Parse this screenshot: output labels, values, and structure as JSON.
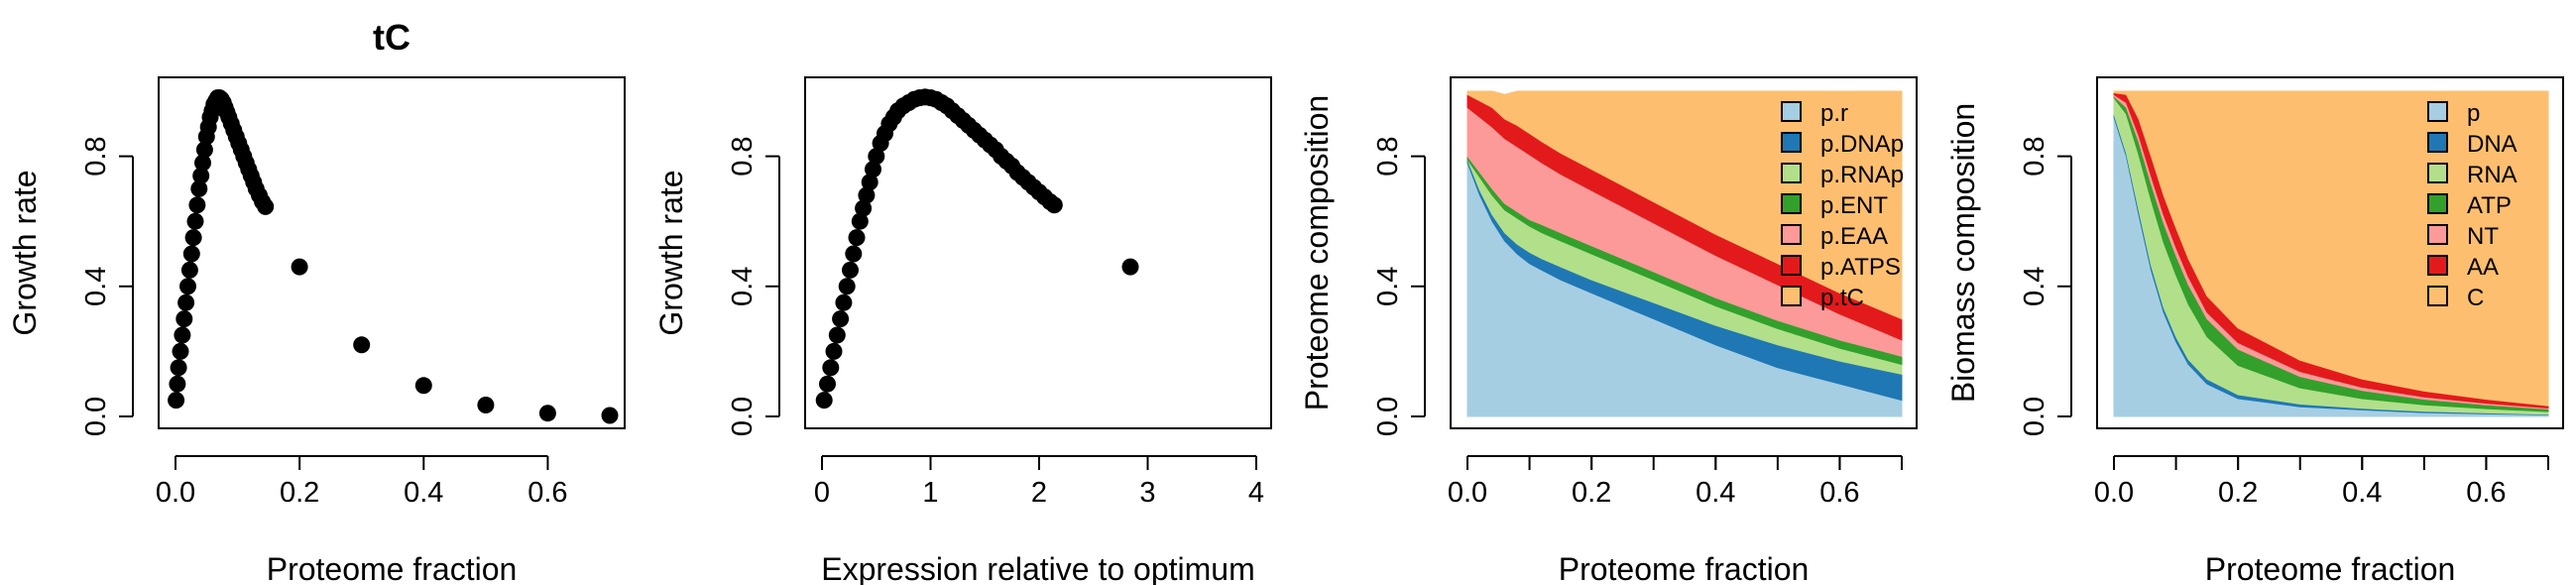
{
  "chart_data": [
    {
      "type": "scatter",
      "title": "tC",
      "xlabel": "Proteome fraction",
      "ylabel": "Growth rate",
      "xlim": [
        0,
        0.7
      ],
      "ylim": [
        0,
        1
      ],
      "xticks": [
        "0.0",
        "0.2",
        "0.4",
        "0.6"
      ],
      "xtick_values": [
        0,
        0.2,
        0.4,
        0.6
      ],
      "yticks": [
        "0.0",
        "0.4",
        "0.8"
      ],
      "ytick_values": [
        0,
        0.4,
        0.8
      ],
      "x": [
        0.001,
        0.003,
        0.005,
        0.008,
        0.011,
        0.014,
        0.017,
        0.02,
        0.023,
        0.026,
        0.029,
        0.032,
        0.035,
        0.038,
        0.041,
        0.044,
        0.047,
        0.05,
        0.053,
        0.056,
        0.059,
        0.062,
        0.065,
        0.068,
        0.071,
        0.074,
        0.077,
        0.08,
        0.083,
        0.086,
        0.09,
        0.094,
        0.098,
        0.102,
        0.106,
        0.11,
        0.114,
        0.118,
        0.122,
        0.126,
        0.13,
        0.135,
        0.14,
        0.145,
        0.2,
        0.3,
        0.4,
        0.5,
        0.6,
        0.7
      ],
      "y": [
        0.05,
        0.1,
        0.15,
        0.2,
        0.25,
        0.3,
        0.35,
        0.4,
        0.45,
        0.5,
        0.55,
        0.6,
        0.65,
        0.7,
        0.74,
        0.78,
        0.82,
        0.86,
        0.89,
        0.92,
        0.94,
        0.96,
        0.97,
        0.98,
        0.98,
        0.975,
        0.965,
        0.95,
        0.935,
        0.92,
        0.9,
        0.88,
        0.86,
        0.84,
        0.82,
        0.8,
        0.78,
        0.76,
        0.74,
        0.72,
        0.7,
        0.68,
        0.66,
        0.645,
        0.46,
        0.22,
        0.095,
        0.035,
        0.01,
        0.003
      ]
    },
    {
      "type": "scatter",
      "title": "",
      "xlabel": "Expression relative to optimum",
      "ylabel": "Growth rate",
      "xlim": [
        0,
        4
      ],
      "ylim": [
        0,
        1
      ],
      "xticks": [
        "0",
        "1",
        "2",
        "3",
        "4"
      ],
      "xtick_values": [
        0,
        1,
        2,
        3,
        4
      ],
      "yticks": [
        "0.0",
        "0.4",
        "0.8"
      ],
      "ytick_values": [
        0,
        0.4,
        0.8
      ],
      "x": [
        0.02,
        0.05,
        0.08,
        0.11,
        0.14,
        0.17,
        0.2,
        0.23,
        0.26,
        0.29,
        0.32,
        0.35,
        0.38,
        0.41,
        0.44,
        0.47,
        0.5,
        0.54,
        0.58,
        0.62,
        0.66,
        0.7,
        0.75,
        0.8,
        0.85,
        0.9,
        0.95,
        1.0,
        1.05,
        1.1,
        1.15,
        1.2,
        1.25,
        1.3,
        1.35,
        1.4,
        1.45,
        1.5,
        1.55,
        1.6,
        1.65,
        1.7,
        1.75,
        1.8,
        1.85,
        1.9,
        1.95,
        2.0,
        2.05,
        2.1,
        2.14,
        2.84
      ],
      "y": [
        0.05,
        0.1,
        0.15,
        0.2,
        0.25,
        0.3,
        0.35,
        0.4,
        0.45,
        0.5,
        0.55,
        0.6,
        0.64,
        0.68,
        0.72,
        0.76,
        0.8,
        0.84,
        0.87,
        0.9,
        0.92,
        0.94,
        0.955,
        0.965,
        0.975,
        0.98,
        0.982,
        0.98,
        0.975,
        0.965,
        0.955,
        0.94,
        0.925,
        0.91,
        0.895,
        0.88,
        0.865,
        0.85,
        0.835,
        0.82,
        0.8,
        0.785,
        0.77,
        0.75,
        0.735,
        0.72,
        0.705,
        0.69,
        0.675,
        0.66,
        0.65,
        0.46
      ]
    },
    {
      "type": "area",
      "title": "",
      "xlabel": "Proteome fraction",
      "ylabel": "Proteome composition",
      "xlim": [
        0,
        0.7
      ],
      "ylim": [
        0,
        1
      ],
      "xticks": [
        "0.0",
        "0.2",
        "0.4",
        "0.6"
      ],
      "xtick_values": [
        0,
        0.2,
        0.4,
        0.6
      ],
      "yticks": [
        "0.0",
        "0.4",
        "0.8"
      ],
      "ytick_values": [
        0,
        0.4,
        0.8
      ],
      "legend_position": "top-right",
      "x": [
        0.0,
        0.02,
        0.04,
        0.06,
        0.08,
        0.1,
        0.12,
        0.15,
        0.2,
        0.3,
        0.4,
        0.5,
        0.6,
        0.7
      ],
      "series": [
        {
          "name": "p.r",
          "color": "#a6cee3",
          "values": [
            0.78,
            0.68,
            0.6,
            0.54,
            0.5,
            0.47,
            0.45,
            0.42,
            0.38,
            0.3,
            0.22,
            0.15,
            0.1,
            0.05
          ]
        },
        {
          "name": "p.DNAp",
          "color": "#1f78b4",
          "values": [
            0.01,
            0.015,
            0.02,
            0.025,
            0.03,
            0.035,
            0.035,
            0.04,
            0.04,
            0.05,
            0.06,
            0.07,
            0.07,
            0.08
          ]
        },
        {
          "name": "p.RNAp",
          "color": "#b2df8a",
          "values": [
            0.0,
            0.04,
            0.06,
            0.07,
            0.08,
            0.08,
            0.08,
            0.08,
            0.08,
            0.07,
            0.06,
            0.05,
            0.04,
            0.03
          ]
        },
        {
          "name": "p.ENT",
          "color": "#33a02c",
          "values": [
            0.01,
            0.015,
            0.02,
            0.02,
            0.02,
            0.02,
            0.025,
            0.025,
            0.025,
            0.025,
            0.025,
            0.025,
            0.025,
            0.025
          ]
        },
        {
          "name": "p.EAA",
          "color": "#fb9a99",
          "values": [
            0.15,
            0.17,
            0.19,
            0.2,
            0.2,
            0.2,
            0.19,
            0.18,
            0.17,
            0.15,
            0.13,
            0.11,
            0.08,
            0.05
          ]
        },
        {
          "name": "p.ATPS",
          "color": "#e31a1c",
          "values": [
            0.04,
            0.05,
            0.06,
            0.06,
            0.065,
            0.065,
            0.065,
            0.065,
            0.065,
            0.065,
            0.065,
            0.065,
            0.065,
            0.065
          ]
        },
        {
          "name": "p.tC",
          "color": "#fdbf6f",
          "values": [
            0.01,
            0.03,
            0.05,
            0.075,
            0.105,
            0.13,
            0.155,
            0.19,
            0.24,
            0.34,
            0.44,
            0.53,
            0.62,
            0.7
          ]
        }
      ]
    },
    {
      "type": "area",
      "title": "",
      "xlabel": "Proteome fraction",
      "ylabel": "Biomass composition",
      "xlim": [
        0,
        0.7
      ],
      "ylim": [
        0,
        1
      ],
      "xticks": [
        "0.0",
        "0.2",
        "0.4",
        "0.6"
      ],
      "xtick_values": [
        0,
        0.2,
        0.4,
        0.6
      ],
      "yticks": [
        "0.0",
        "0.4",
        "0.8"
      ],
      "ytick_values": [
        0,
        0.4,
        0.8
      ],
      "legend_position": "top-right",
      "x": [
        0.0,
        0.02,
        0.04,
        0.06,
        0.08,
        0.1,
        0.12,
        0.15,
        0.2,
        0.3,
        0.4,
        0.5,
        0.6,
        0.7
      ],
      "series": [
        {
          "name": "p",
          "color": "#a6cee3",
          "values": [
            0.92,
            0.8,
            0.62,
            0.45,
            0.32,
            0.23,
            0.16,
            0.1,
            0.055,
            0.03,
            0.02,
            0.012,
            0.008,
            0.005
          ]
        },
        {
          "name": "DNA",
          "color": "#1f78b4",
          "values": [
            0.01,
            0.01,
            0.015,
            0.015,
            0.015,
            0.015,
            0.015,
            0.015,
            0.012,
            0.008,
            0.005,
            0.004,
            0.003,
            0.002
          ]
        },
        {
          "name": "RNA",
          "color": "#b2df8a",
          "values": [
            0.05,
            0.12,
            0.17,
            0.2,
            0.2,
            0.19,
            0.17,
            0.13,
            0.09,
            0.05,
            0.03,
            0.02,
            0.013,
            0.008
          ]
        },
        {
          "name": "ATP",
          "color": "#33a02c",
          "values": [
            0.005,
            0.02,
            0.04,
            0.05,
            0.06,
            0.06,
            0.06,
            0.055,
            0.05,
            0.035,
            0.025,
            0.017,
            0.012,
            0.008
          ]
        },
        {
          "name": "NT",
          "color": "#fb9a99",
          "values": [
            0.005,
            0.015,
            0.02,
            0.025,
            0.025,
            0.025,
            0.025,
            0.02,
            0.02,
            0.015,
            0.01,
            0.007,
            0.005,
            0.003
          ]
        },
        {
          "name": "AA",
          "color": "#e31a1c",
          "values": [
            0.005,
            0.025,
            0.05,
            0.06,
            0.06,
            0.06,
            0.055,
            0.05,
            0.045,
            0.035,
            0.025,
            0.018,
            0.012,
            0.007
          ]
        },
        {
          "name": "C",
          "color": "#fdbf6f",
          "values": [
            0.005,
            0.01,
            0.085,
            0.2,
            0.32,
            0.42,
            0.515,
            0.63,
            0.728,
            0.827,
            0.885,
            0.922,
            0.947,
            0.967
          ]
        }
      ]
    }
  ]
}
